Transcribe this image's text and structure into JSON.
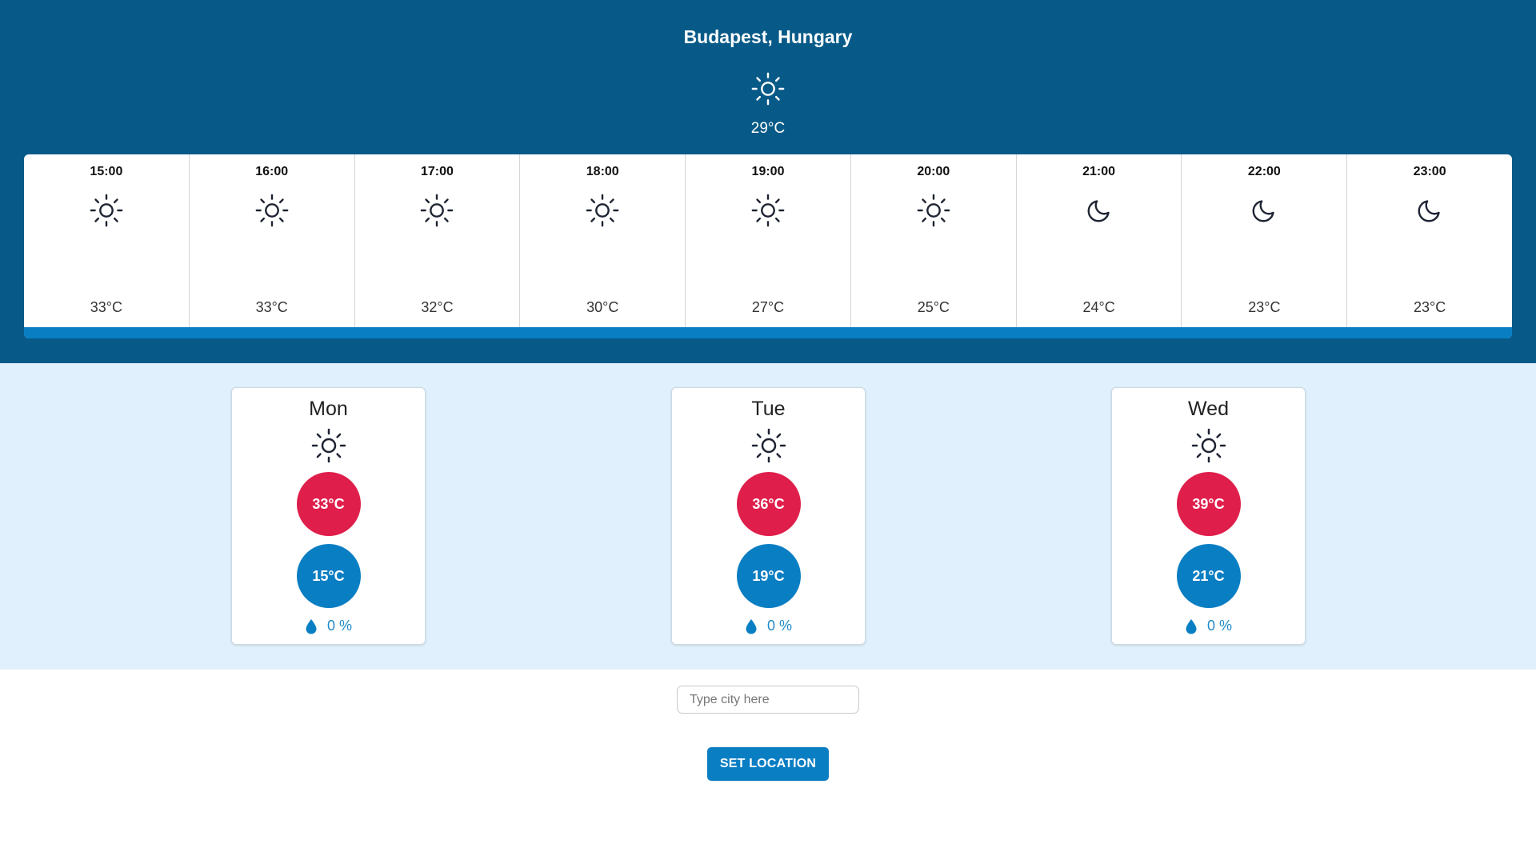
{
  "location": {
    "title": "Budapest, Hungary"
  },
  "current": {
    "icon": "sun-icon",
    "temp": "29°C"
  },
  "hourly": [
    {
      "time": "15:00",
      "icon": "sun-icon",
      "temp": "33°C"
    },
    {
      "time": "16:00",
      "icon": "sun-icon",
      "temp": "33°C"
    },
    {
      "time": "17:00",
      "icon": "sun-icon",
      "temp": "32°C"
    },
    {
      "time": "18:00",
      "icon": "sun-icon",
      "temp": "30°C"
    },
    {
      "time": "19:00",
      "icon": "sun-icon",
      "temp": "27°C"
    },
    {
      "time": "20:00",
      "icon": "sun-icon",
      "temp": "25°C"
    },
    {
      "time": "21:00",
      "icon": "moon-icon",
      "temp": "24°C"
    },
    {
      "time": "22:00",
      "icon": "moon-icon",
      "temp": "23°C"
    },
    {
      "time": "23:00",
      "icon": "moon-icon",
      "temp": "23°C"
    }
  ],
  "daily": [
    {
      "day": "Mon",
      "icon": "sun-icon",
      "high": "33°C",
      "low": "15°C",
      "precip": "0 %"
    },
    {
      "day": "Tue",
      "icon": "sun-icon",
      "high": "36°C",
      "low": "19°C",
      "precip": "0 %"
    },
    {
      "day": "Wed",
      "icon": "sun-icon",
      "high": "39°C",
      "low": "21°C",
      "precip": "0 %"
    }
  ],
  "search": {
    "placeholder": "Type city here",
    "value": ""
  },
  "set_location": {
    "label": "SET LOCATION"
  },
  "colors": {
    "header_bg": "#075a87",
    "daily_bg": "#e0f1fd",
    "accent": "#0a7ec3",
    "high_temp": "#e01e4b",
    "low_temp": "#0a7ec3"
  }
}
